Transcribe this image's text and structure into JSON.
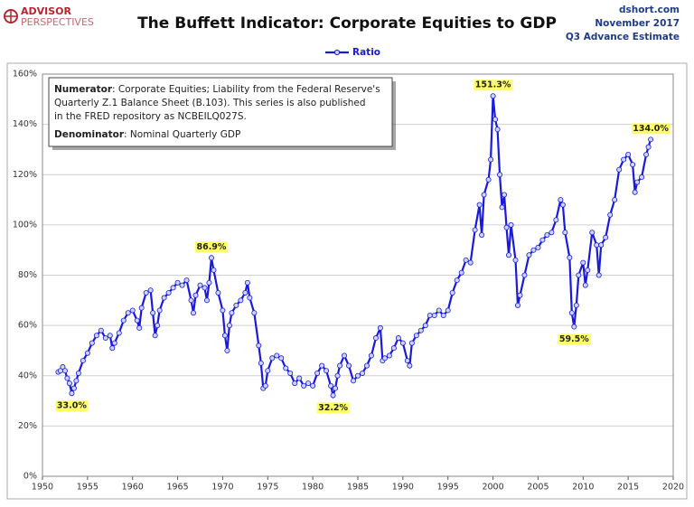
{
  "header": {
    "logo_top": "ADVISOR",
    "logo_bottom": "PERSPECTIVES",
    "site": "dshort.com",
    "date": "November 2017",
    "estimate": "Q3 Advance Estimate"
  },
  "note": {
    "numerator_label": "Numerator",
    "numerator_lines": [
      ": Corporate Equities; Liability from the Federal Reserve's",
      "Quarterly Z.1 Balance Sheet (B.103). This series is also published",
      "in the FRED repository  as NCBEILQ027S."
    ],
    "denominator_label": "Denominator",
    "denominator_text": ": Nominal Quarterly GDP"
  },
  "chart_data": {
    "type": "line",
    "title": "The Buffett Indicator: Corporate Equities to GDP",
    "x": [
      1951.75,
      1952,
      1952.25,
      1952.5,
      1952.75,
      1953,
      1953.25,
      1953.5,
      1953.75,
      1954,
      1954.5,
      1955,
      1955.5,
      1956,
      1956.5,
      1957,
      1957.5,
      1957.75,
      1958,
      1958.5,
      1959,
      1959.5,
      1960,
      1960.5,
      1960.75,
      1961,
      1961.5,
      1962,
      1962.25,
      1962.5,
      1962.75,
      1963,
      1963.5,
      1964,
      1964.5,
      1965,
      1965.5,
      1966,
      1966.5,
      1966.75,
      1967,
      1967.5,
      1968,
      1968.25,
      1968.5,
      1968.75,
      1969,
      1969.5,
      1970,
      1970.25,
      1970.5,
      1970.75,
      1971,
      1971.5,
      1972,
      1972.5,
      1972.75,
      1973,
      1973.5,
      1974,
      1974.25,
      1974.5,
      1974.75,
      1975,
      1975.5,
      1976,
      1976.5,
      1977,
      1977.5,
      1978,
      1978.5,
      1979,
      1979.5,
      1980,
      1980.5,
      1981,
      1981.5,
      1982,
      1982.25,
      1982.5,
      1982.75,
      1983,
      1983.5,
      1984,
      1984.5,
      1985,
      1985.5,
      1986,
      1986.5,
      1987,
      1987.5,
      1987.75,
      1988,
      1988.5,
      1989,
      1989.5,
      1990,
      1990.5,
      1990.75,
      1991,
      1991.5,
      1992,
      1992.5,
      1993,
      1993.5,
      1994,
      1994.5,
      1995,
      1995.5,
      1996,
      1996.5,
      1997,
      1997.5,
      1998,
      1998.5,
      1998.75,
      1999,
      1999.5,
      1999.75,
      2000,
      2000.25,
      2000.5,
      2000.75,
      2001,
      2001.25,
      2001.5,
      2001.75,
      2002,
      2002.5,
      2002.75,
      2003,
      2003.5,
      2004,
      2004.5,
      2005,
      2005.5,
      2006,
      2006.5,
      2007,
      2007.5,
      2007.75,
      2008,
      2008.5,
      2008.75,
      2009,
      2009.25,
      2009.5,
      2010,
      2010.25,
      2010.5,
      2011,
      2011.5,
      2011.75,
      2012,
      2012.5,
      2013,
      2013.5,
      2014,
      2014.5,
      2015,
      2015.5,
      2015.75,
      2016,
      2016.5,
      2017,
      2017.25,
      2017.5
    ],
    "series": [
      {
        "name": "Ratio",
        "color": "#1a1adb",
        "values": [
          41.5,
          42,
          43.5,
          42,
          39,
          37,
          33.0,
          35,
          38,
          41,
          46,
          49,
          53,
          56,
          58,
          55,
          56,
          51,
          53,
          57,
          62,
          65,
          66,
          62,
          59,
          67,
          73,
          74,
          65,
          56,
          60,
          66,
          71,
          73,
          75,
          77,
          76,
          78,
          70,
          65,
          72,
          76,
          75,
          70,
          77,
          86.9,
          82,
          73,
          66,
          56,
          50,
          60,
          65,
          68,
          70,
          73,
          77,
          71,
          65,
          52,
          45,
          35,
          36,
          42,
          47,
          48,
          47,
          43,
          41,
          37,
          39,
          36,
          37,
          36,
          41,
          44,
          42,
          36,
          32.2,
          35,
          40,
          44,
          48,
          44,
          38,
          40,
          41,
          44,
          48,
          55,
          59,
          46,
          47,
          48,
          51,
          55,
          53,
          46,
          44,
          53,
          56,
          58,
          60,
          64,
          64,
          66,
          64,
          66,
          73,
          78,
          81,
          86,
          85,
          98,
          108,
          96,
          112,
          118,
          126,
          151.3,
          142,
          138,
          120,
          107,
          112,
          99,
          88,
          100,
          86,
          68,
          72,
          80,
          88,
          90,
          91,
          94,
          96,
          97,
          102,
          110,
          108,
          97,
          87,
          65,
          59.5,
          68,
          80,
          85,
          76,
          82,
          97,
          92,
          80,
          92,
          95,
          104,
          110,
          122,
          126,
          128,
          124,
          113,
          117,
          119,
          128,
          131,
          134.0
        ]
      }
    ],
    "annotations": [
      {
        "x": 1953.25,
        "value": 33.0,
        "label": "33.0%"
      },
      {
        "x": 1968.75,
        "value": 86.9,
        "label": "86.9%"
      },
      {
        "x": 1982.25,
        "value": 32.2,
        "label": "32.2%"
      },
      {
        "x": 2000,
        "value": 151.3,
        "label": "151.3%"
      },
      {
        "x": 2009,
        "value": 59.5,
        "label": "59.5%"
      },
      {
        "x": 2017.5,
        "value": 134.0,
        "label": "134.0%"
      }
    ],
    "xlim": [
      1950,
      2020
    ],
    "xticks": [
      1950,
      1955,
      1960,
      1965,
      1970,
      1975,
      1980,
      1985,
      1990,
      1995,
      2000,
      2005,
      2010,
      2015,
      2020
    ],
    "ylim": [
      0,
      160
    ],
    "yticks": [
      {
        "value": 0,
        "label": "0%"
      },
      {
        "value": 20,
        "label": "20%"
      },
      {
        "value": 40,
        "label": "40%"
      },
      {
        "value": 60,
        "label": "60%"
      },
      {
        "value": 80,
        "label": "80%"
      },
      {
        "value": 100,
        "label": "100%"
      },
      {
        "value": 120,
        "label": "120%"
      },
      {
        "value": 140,
        "label": "140%"
      },
      {
        "value": 160,
        "label": "160%"
      }
    ],
    "grid": true,
    "legend": "top"
  }
}
